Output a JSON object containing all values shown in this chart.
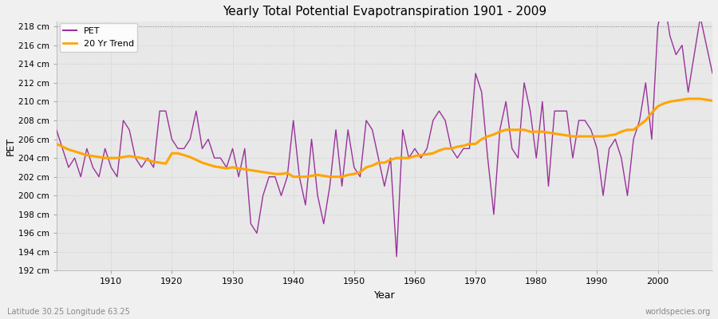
{
  "title": "Yearly Total Potential Evapotranspiration 1901 - 2009",
  "xlabel": "Year",
  "ylabel": "PET",
  "lat_lon_label": "Latitude 30.25 Longitude 63.25",
  "watermark": "worldspecies.org",
  "ylim": [
    192,
    218.5
  ],
  "xlim": [
    1901,
    2009
  ],
  "ytick_vals": [
    192,
    194,
    196,
    198,
    200,
    202,
    204,
    206,
    208,
    210,
    212,
    214,
    216,
    218
  ],
  "xtick_vals": [
    1910,
    1920,
    1930,
    1940,
    1950,
    1960,
    1970,
    1980,
    1990,
    2000
  ],
  "bg_color": "#f0f0f0",
  "plot_bg_color": "#e8e8e8",
  "pet_color": "#993399",
  "trend_color": "#FFA500",
  "pet_linewidth": 1.0,
  "trend_linewidth": 2.2,
  "hline_y": 218,
  "hline_color": "#999999",
  "years": [
    1901,
    1902,
    1903,
    1904,
    1905,
    1906,
    1907,
    1908,
    1909,
    1910,
    1911,
    1912,
    1913,
    1914,
    1915,
    1916,
    1917,
    1918,
    1919,
    1920,
    1921,
    1922,
    1923,
    1924,
    1925,
    1926,
    1927,
    1928,
    1929,
    1930,
    1931,
    1932,
    1933,
    1934,
    1935,
    1936,
    1937,
    1938,
    1939,
    1940,
    1941,
    1942,
    1943,
    1944,
    1945,
    1946,
    1947,
    1948,
    1949,
    1950,
    1951,
    1952,
    1953,
    1954,
    1955,
    1956,
    1957,
    1958,
    1959,
    1960,
    1961,
    1962,
    1963,
    1964,
    1965,
    1966,
    1967,
    1968,
    1969,
    1970,
    1971,
    1972,
    1973,
    1974,
    1975,
    1976,
    1977,
    1978,
    1979,
    1980,
    1981,
    1982,
    1983,
    1984,
    1985,
    1986,
    1987,
    1988,
    1989,
    1990,
    1991,
    1992,
    1993,
    1994,
    1995,
    1996,
    1997,
    1998,
    1999,
    2000,
    2001,
    2002,
    2003,
    2004,
    2005,
    2006,
    2007,
    2008,
    2009
  ],
  "pet_values": [
    207,
    205,
    203,
    204,
    202,
    205,
    203,
    202,
    205,
    203,
    202,
    208,
    207,
    204,
    203,
    204,
    203,
    209,
    209,
    206,
    205,
    205,
    206,
    209,
    205,
    206,
    204,
    204,
    203,
    205,
    202,
    205,
    197,
    196,
    200,
    202,
    202,
    200,
    202,
    208,
    202,
    199,
    206,
    200,
    197,
    201,
    207,
    201,
    207,
    203,
    202,
    208,
    207,
    204,
    201,
    204,
    193.5,
    207,
    204,
    205,
    204,
    205,
    208,
    209,
    208,
    205,
    204,
    205,
    205,
    213,
    211,
    204,
    198,
    207,
    210,
    205,
    204,
    212,
    209,
    204,
    210,
    201,
    209,
    209,
    209,
    204,
    208,
    208,
    207,
    205,
    200,
    205,
    206,
    204,
    200,
    206,
    208,
    212,
    206,
    218,
    221,
    217,
    215,
    216,
    211,
    215,
    219,
    216,
    213
  ],
  "trend_years": [
    1901,
    1902,
    1903,
    1904,
    1905,
    1906,
    1907,
    1908,
    1909,
    1910,
    1911,
    1912,
    1913,
    1914,
    1915,
    1916,
    1917,
    1918,
    1919,
    1920,
    1921,
    1922,
    1923,
    1924,
    1925,
    1926,
    1927,
    1928,
    1929,
    1930,
    1931,
    1932,
    1933,
    1934,
    1935,
    1936,
    1937,
    1938,
    1939,
    1940,
    1941,
    1942,
    1943,
    1944,
    1945,
    1946,
    1947,
    1948,
    1949,
    1950,
    1951,
    1952,
    1953,
    1954,
    1955,
    1956,
    1957,
    1958,
    1959,
    1960,
    1961,
    1962,
    1963,
    1964,
    1965,
    1966,
    1967,
    1968,
    1969,
    1970,
    1971,
    1972,
    1973,
    1974,
    1975,
    1976,
    1977,
    1978,
    1979,
    1980,
    1981,
    1982,
    1983,
    1984,
    1985,
    1986,
    1987,
    1988,
    1989,
    1990,
    1991,
    1992,
    1993,
    1994,
    1995,
    1996,
    1997,
    1998,
    1999,
    2000,
    2001,
    2002,
    2003,
    2004,
    2005,
    2006,
    2007,
    2008,
    2009
  ],
  "trend_values": [
    205.5,
    205.2,
    204.9,
    204.7,
    204.5,
    204.3,
    204.2,
    204.1,
    204.0,
    204.0,
    204.0,
    204.1,
    204.2,
    204.1,
    204.0,
    203.8,
    203.6,
    203.5,
    203.4,
    204.5,
    204.5,
    204.3,
    204.1,
    203.8,
    203.5,
    203.3,
    203.1,
    203.0,
    202.9,
    203.0,
    202.9,
    202.8,
    202.7,
    202.6,
    202.5,
    202.4,
    202.3,
    202.3,
    202.4,
    202.0,
    202.0,
    202.0,
    202.1,
    202.2,
    202.1,
    202.0,
    202.0,
    202.0,
    202.2,
    202.3,
    202.5,
    203.0,
    203.2,
    203.5,
    203.5,
    203.8,
    204.0,
    204.0,
    204.0,
    204.2,
    204.3,
    204.4,
    204.5,
    204.8,
    205.0,
    205.0,
    205.2,
    205.3,
    205.5,
    205.5,
    206.0,
    206.3,
    206.5,
    206.8,
    207.0,
    207.0,
    207.0,
    207.0,
    206.8,
    206.8,
    206.8,
    206.7,
    206.6,
    206.5,
    206.4,
    206.3,
    206.3,
    206.3,
    206.3,
    206.3,
    206.3,
    206.4,
    206.5,
    206.8,
    207.0,
    207.0,
    207.5,
    208.0,
    208.8,
    209.5,
    209.8,
    210.0,
    210.1,
    210.2,
    210.3,
    210.3,
    210.3,
    210.2,
    210.1
  ]
}
